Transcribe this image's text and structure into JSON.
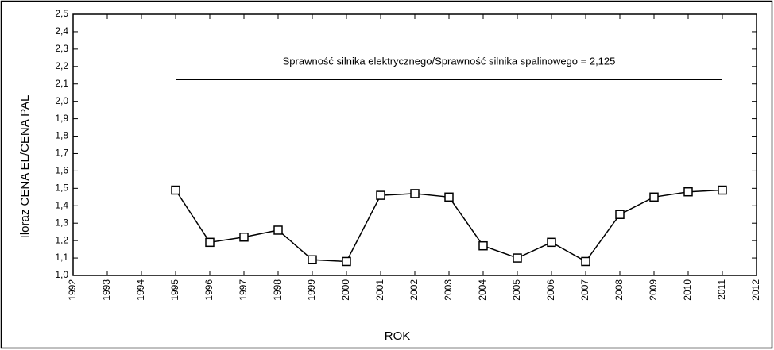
{
  "chart_data": {
    "type": "line",
    "x_label": "ROK",
    "y_label": "Iloraz CENA EL/CENA PAL",
    "xlim": [
      1992,
      2012
    ],
    "xticks": [
      1992,
      1993,
      1994,
      1995,
      1996,
      1997,
      1998,
      1999,
      2000,
      2001,
      2002,
      2003,
      2004,
      2005,
      2006,
      2007,
      2008,
      2009,
      2010,
      2011,
      2012
    ],
    "ylim": [
      1.0,
      2.5
    ],
    "yticks": [
      {
        "value": 1.0,
        "label": "1,0"
      },
      {
        "value": 1.1,
        "label": "1,1"
      },
      {
        "value": 1.2,
        "label": "1,2"
      },
      {
        "value": 1.3,
        "label": "1,3"
      },
      {
        "value": 1.4,
        "label": "1,4"
      },
      {
        "value": 1.5,
        "label": "1,5"
      },
      {
        "value": 1.6,
        "label": "1,6"
      },
      {
        "value": 1.7,
        "label": "1,7"
      },
      {
        "value": 1.8,
        "label": "1,8"
      },
      {
        "value": 1.9,
        "label": "1,9"
      },
      {
        "value": 2.0,
        "label": "2,0"
      },
      {
        "value": 2.1,
        "label": "2,1"
      },
      {
        "value": 2.2,
        "label": "2,2"
      },
      {
        "value": 2.3,
        "label": "2,3"
      },
      {
        "value": 2.4,
        "label": "2,4"
      },
      {
        "value": 2.5,
        "label": "2,5"
      }
    ],
    "x": [
      1995,
      1996,
      1997,
      1998,
      1999,
      2000,
      2001,
      2002,
      2003,
      2004,
      2005,
      2006,
      2007,
      2008,
      2009,
      2010,
      2011
    ],
    "series": [
      {
        "color": "#000000",
        "values": [
          1.49,
          1.19,
          1.22,
          1.26,
          1.09,
          1.08,
          1.46,
          1.47,
          1.45,
          1.17,
          1.1,
          1.19,
          1.08,
          1.35,
          1.45,
          1.48,
          1.49
        ]
      }
    ],
    "reference_line": {
      "value": 2.125,
      "x": [
        1995,
        2011
      ],
      "label": "Sprawność silnika elektrycznego/Sprawność silnika spalinowego = 2,125"
    }
  }
}
